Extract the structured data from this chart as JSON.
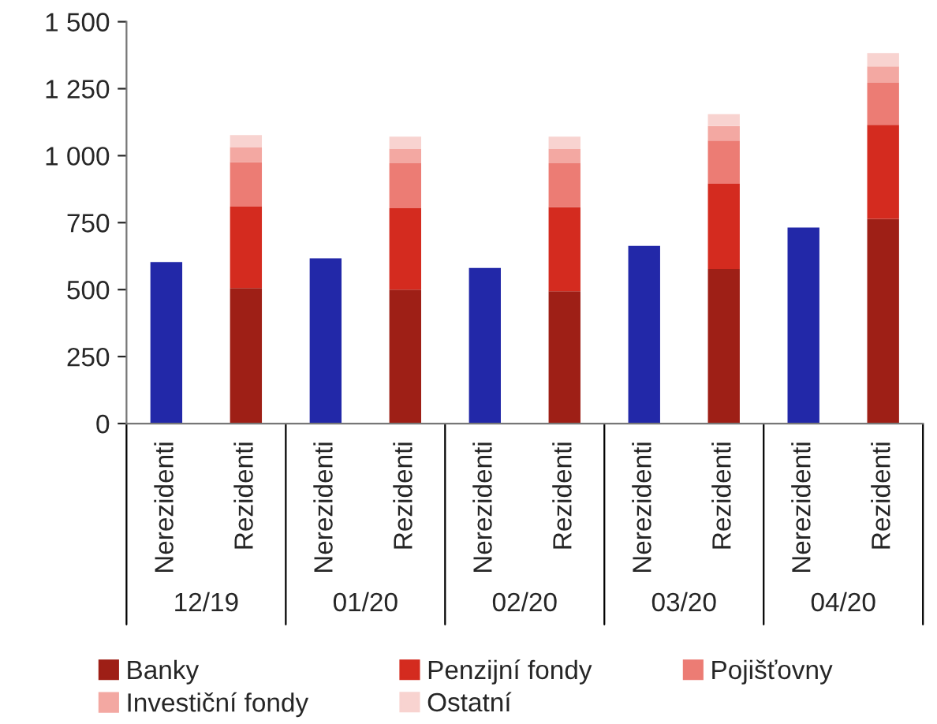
{
  "chart_data": {
    "type": "bar",
    "stacked": true,
    "categories": [
      "Nerezidenti",
      "Rezidenti",
      "Nerezidenti",
      "Rezidenti",
      "Nerezidenti",
      "Rezidenti",
      "Nerezidenti",
      "Rezidenti",
      "Nerezidenti",
      "Rezidenti"
    ],
    "series": [
      {
        "color": "#2228a8",
        "values": [
          603,
          null,
          617,
          null,
          581,
          null,
          663,
          null,
          732,
          null
        ]
      },
      {
        "name": "Banky",
        "color": "#9e1f16",
        "values": [
          null,
          506,
          null,
          500,
          null,
          494,
          null,
          577,
          null,
          764
        ]
      },
      {
        "name": "Penzijní fondy",
        "color": "#d42b1f",
        "values": [
          null,
          304,
          null,
          304,
          null,
          314,
          null,
          318,
          null,
          351
        ]
      },
      {
        "name": "Pojišťovny",
        "color": "#ec7c74",
        "values": [
          null,
          166,
          null,
          168,
          null,
          164,
          null,
          161,
          null,
          157
        ]
      },
      {
        "name": "Investiční fondy",
        "color": "#f3a8a2",
        "values": [
          null,
          56,
          null,
          54,
          null,
          54,
          null,
          55,
          null,
          61
        ]
      },
      {
        "name": "Ostatní",
        "color": "#f8d3d0",
        "values": [
          null,
          45,
          null,
          45,
          null,
          45,
          null,
          44,
          null,
          50
        ]
      }
    ],
    "annotations": [
      "12/19",
      "01/20",
      "02/20",
      "03/20",
      "04/20"
    ],
    "ylim": [
      0,
      1500
    ],
    "yticks": [
      {
        "value": 0,
        "label": "0"
      },
      {
        "value": 250,
        "label": "250"
      },
      {
        "value": 500,
        "label": "500"
      },
      {
        "value": 750,
        "label": "750"
      },
      {
        "value": 1000,
        "label": "1 000"
      },
      {
        "value": 1250,
        "label": "1 250"
      },
      {
        "value": 1500,
        "label": "1 500"
      }
    ],
    "grid": false,
    "legend": "bottom"
  }
}
